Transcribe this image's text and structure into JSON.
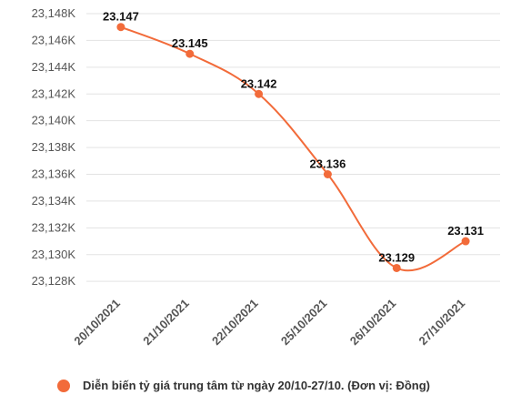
{
  "chart_data": {
    "type": "line",
    "categories": [
      "20/10/2021",
      "21/10/2021",
      "22/10/2021",
      "25/10/2021",
      "26/10/2021",
      "27/10/2021"
    ],
    "series": [
      {
        "name": "Diễn biến tỷ giá trung tâm từ ngày 20/10-27/10. (Đơn vị: Đồng)",
        "values": [
          23147,
          23145,
          23142,
          23136,
          23129,
          23131
        ],
        "labels": [
          "23.147",
          "23.145",
          "23.142",
          "23.136",
          "23.129",
          "23.131"
        ]
      }
    ],
    "yticks": [
      "23,148K",
      "23,146K",
      "23,144K",
      "23,142K",
      "23,140K",
      "23,138K",
      "23,136K",
      "23,134K",
      "23,132K",
      "23,130K",
      "23,128K"
    ],
    "ylim": [
      23127.4,
      23148
    ],
    "grid": true,
    "legend": "bottom",
    "color": "#f26b3a"
  }
}
